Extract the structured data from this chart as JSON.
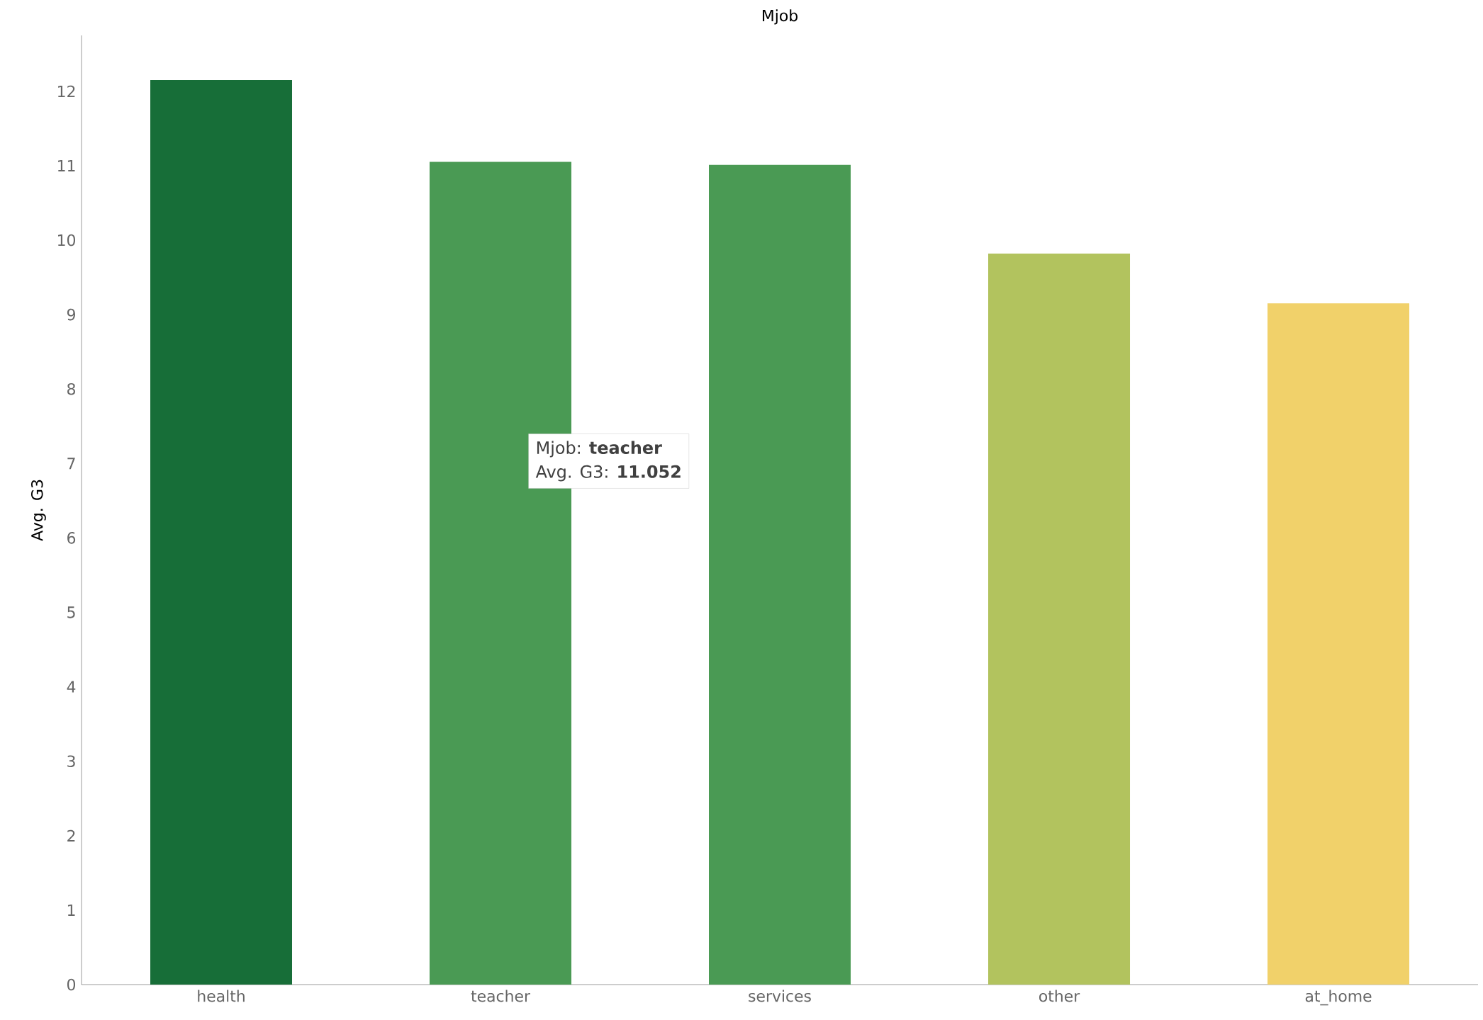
{
  "chart_data": {
    "type": "bar",
    "title": "Mjob",
    "ylabel": "Avg. G3",
    "categories": [
      "health",
      "teacher",
      "services",
      "other",
      "at_home"
    ],
    "values": [
      12.15,
      11.052,
      11.01,
      9.82,
      9.15
    ],
    "colors": [
      "#176e38",
      "#4a9a54",
      "#4a9a54",
      "#b2c35e",
      "#f1d16a"
    ],
    "ylim": [
      0,
      12.75
    ],
    "yticks": [
      0,
      1,
      2,
      3,
      4,
      5,
      6,
      7,
      8,
      9,
      10,
      11,
      12
    ],
    "grid": false,
    "annotations": [
      "Mjob:      **teacher**",
      "Avg. G3: **11.052**"
    ]
  }
}
